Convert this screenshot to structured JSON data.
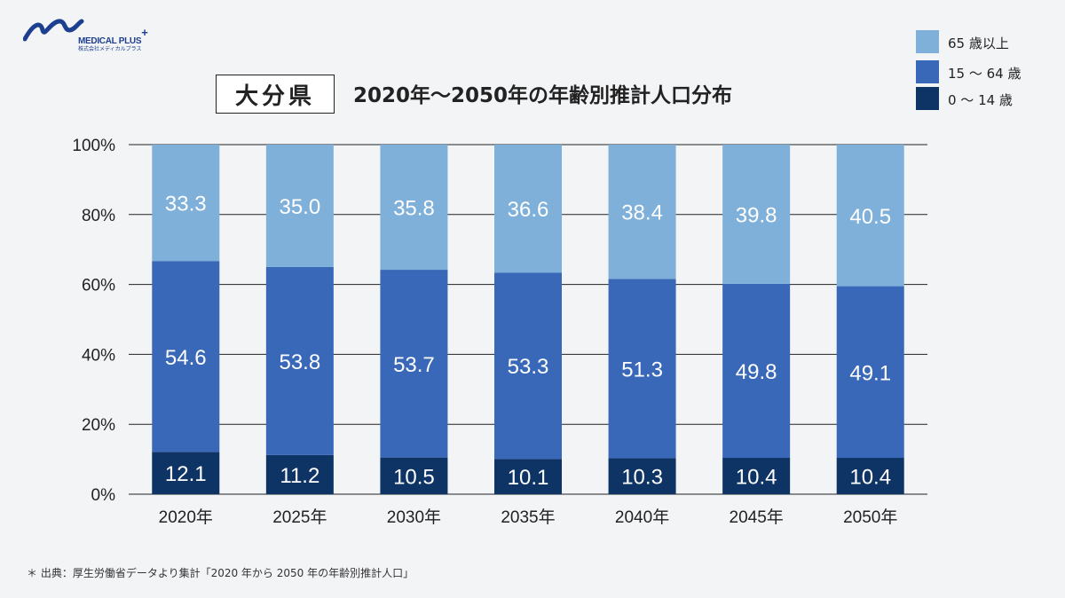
{
  "logo": {
    "brand": "MEDICAL PLUS",
    "plus_mark": "+",
    "sub": "株式会社メディカルプラス"
  },
  "header": {
    "prefecture": "大分県",
    "title": "2020年〜2050年の年齢別推計人口分布"
  },
  "colors": {
    "age65": "#7fb0da",
    "age15_64": "#3a68b8",
    "age0_14": "#0e3466",
    "gridline": "#222222"
  },
  "legend": [
    {
      "label": "65 歳以上",
      "color": "#7fb0da"
    },
    {
      "label": "15 〜 64 歳",
      "color": "#3a68b8"
    },
    {
      "label": "0 〜 14 歳",
      "color": "#0e3466"
    }
  ],
  "chart_data": {
    "type": "bar",
    "stacked": true,
    "categories": [
      "2020年",
      "2025年",
      "2030年",
      "2035年",
      "2040年",
      "2045年",
      "2050年"
    ],
    "series": [
      {
        "name": "0 〜 14 歳",
        "values": [
          12.1,
          11.2,
          10.5,
          10.1,
          10.3,
          10.4,
          10.4
        ]
      },
      {
        "name": "15 〜 64 歳",
        "values": [
          54.6,
          53.8,
          53.7,
          53.3,
          51.3,
          49.8,
          49.1
        ]
      },
      {
        "name": "65 歳以上",
        "values": [
          33.3,
          35.0,
          35.8,
          36.6,
          38.4,
          39.8,
          40.5
        ]
      }
    ],
    "ylim": [
      0,
      100
    ],
    "yticks": [
      "0%",
      "20%",
      "40%",
      "60%",
      "80%",
      "100%"
    ],
    "grid": true,
    "legend_position": "top-right"
  },
  "footnote": "＊ 出典：厚生労働省データより集計「2020 年から 2050 年の年齢別推計人口」"
}
